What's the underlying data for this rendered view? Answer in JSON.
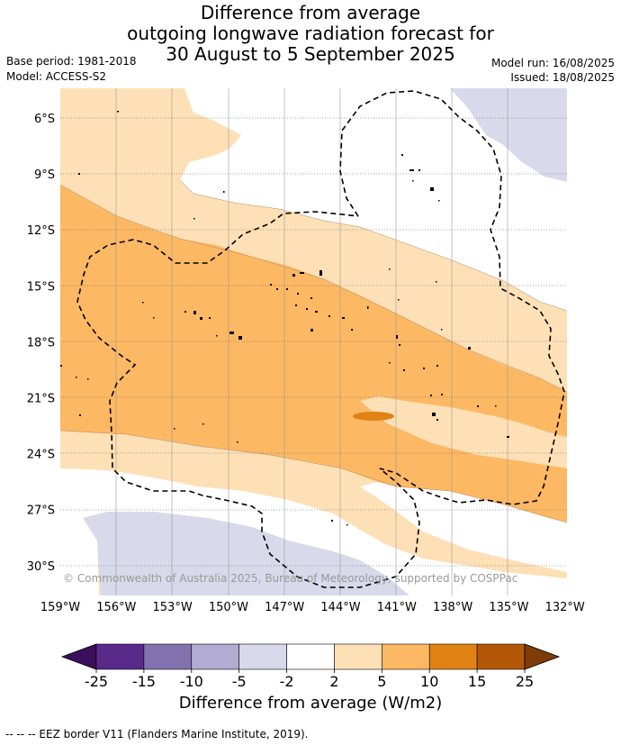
{
  "title": {
    "line1": "Difference from average",
    "line2": "outgoing longwave radiation forecast for",
    "line3": "30 August to 5 September 2025"
  },
  "meta": {
    "base_period": "Base period: 1981-2018",
    "model": "Model: ACCESS-S2",
    "model_run": "Model run: 16/08/2025",
    "issued": "Issued: 18/08/2025"
  },
  "map": {
    "lat_labels": [
      "6°S",
      "9°S",
      "12°S",
      "15°S",
      "18°S",
      "21°S",
      "24°S",
      "27°S",
      "30°S"
    ],
    "lon_labels": [
      "159°W",
      "156°W",
      "153°W",
      "150°W",
      "147°W",
      "144°W",
      "141°W",
      "138°W",
      "135°W",
      "132°W"
    ],
    "copyright": "© Commonwealth of Australia 2025, Bureau of Meteorology, supported by COSPPac"
  },
  "colorbar": {
    "title": "Difference from average (W/m2)",
    "tick_labels": [
      "-25",
      "-15",
      "-10",
      "-5",
      "-2",
      "2",
      "5",
      "10",
      "15",
      "25"
    ],
    "colors": [
      "#3b0f5a",
      "#5a2a8a",
      "#8272b0",
      "#b2abd2",
      "#d8d9ea",
      "#ffffff",
      "#fee0b6",
      "#fdb863",
      "#e08214",
      "#b35806",
      "#7f3b08"
    ]
  },
  "footer": {
    "legend_text": "--  --  -- EEZ border V11 (Flanders Marine Institute, 2019)."
  }
}
